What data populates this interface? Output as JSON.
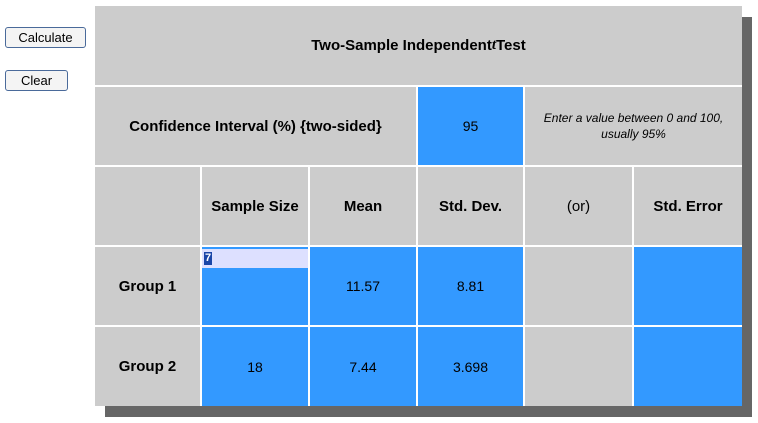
{
  "buttons": {
    "calculate": "Calculate",
    "clear": "Clear"
  },
  "title": {
    "prefix": "Two-Sample Independent ",
    "t_symbol": "t",
    "suffix": " Test"
  },
  "confidence": {
    "label": "Confidence Interval (%) {two-sided}",
    "value": "95",
    "hint": "Enter a value between 0 and 100, usually 95%"
  },
  "table": {
    "headers": [
      "Sample Size",
      "Mean",
      "Std. Dev.",
      "(or)",
      "Std. Error"
    ],
    "groups": [
      {
        "label": "Group 1",
        "sample_size": "7",
        "mean": "11.57",
        "std_dev": "8.81",
        "std_error": ""
      },
      {
        "label": "Group 2",
        "sample_size": "18",
        "mean": "7.44",
        "std_dev": "3.698",
        "std_error": ""
      }
    ]
  },
  "colors": {
    "input_blue": "#3399ff",
    "label_grey": "#cccccc",
    "shadow": "#666666"
  }
}
